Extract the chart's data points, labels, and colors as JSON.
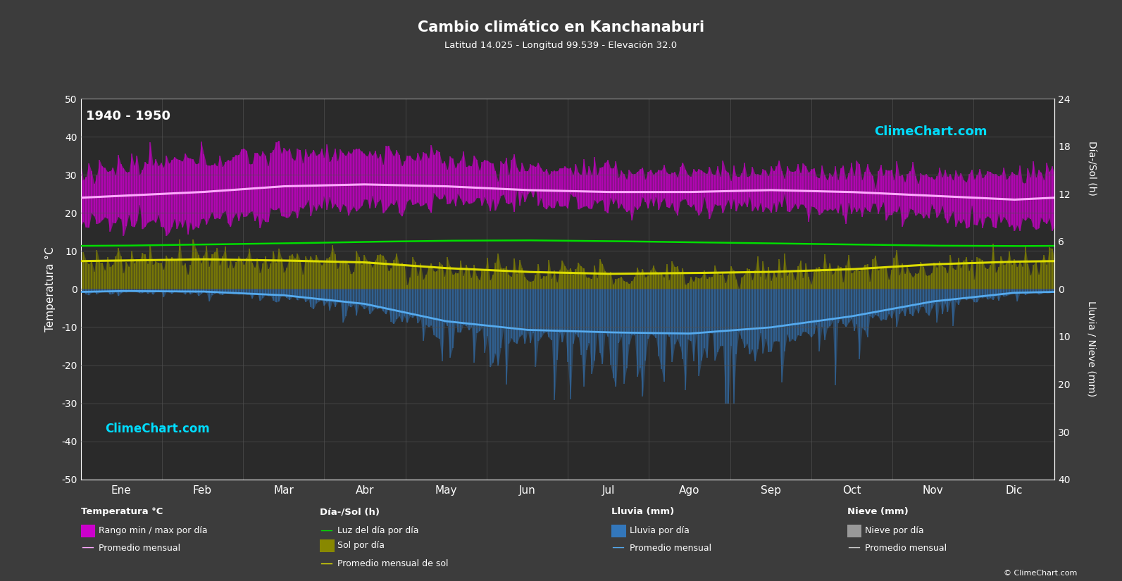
{
  "title": "Cambio climático en Kanchanaburi",
  "subtitle": "Latitud 14.025 - Longitud 99.539 - Elevación 32.0",
  "year_range": "1940 - 1950",
  "background_color": "#3c3c3c",
  "plot_bg_color": "#2a2a2a",
  "grid_color": "#505050",
  "text_color": "#ffffff",
  "months": [
    "Ene",
    "Feb",
    "Mar",
    "Abr",
    "May",
    "Jun",
    "Jul",
    "Ago",
    "Sep",
    "Oct",
    "Nov",
    "Dic"
  ],
  "ylim_temp": [
    -50,
    50
  ],
  "temp_min_monthly": [
    17,
    18,
    20,
    22,
    23,
    23,
    22,
    22,
    22,
    21,
    19,
    17
  ],
  "temp_max_monthly": [
    32,
    34,
    36,
    36,
    34,
    32,
    31,
    31,
    31,
    31,
    30,
    30
  ],
  "temp_avg_monthly": [
    24.5,
    25.5,
    27,
    27.5,
    27,
    26,
    25.5,
    25.5,
    26,
    25.5,
    24.5,
    23.5
  ],
  "temp_min_noise": 1.5,
  "temp_max_noise": 1.5,
  "daylight_monthly": [
    11.4,
    11.7,
    12.0,
    12.4,
    12.7,
    12.8,
    12.6,
    12.3,
    12.0,
    11.7,
    11.4,
    11.3
  ],
  "sunshine_monthly": [
    7.5,
    7.8,
    7.5,
    7.0,
    5.5,
    4.5,
    4.0,
    4.2,
    4.5,
    5.2,
    6.5,
    7.2
  ],
  "sunshine_noise": 2.0,
  "rain_mm_monthly": [
    8,
    10,
    25,
    60,
    130,
    165,
    175,
    180,
    155,
    110,
    50,
    15
  ],
  "rain_scale": 0.065,
  "rain_noise_factor": 1.8,
  "colors": {
    "temp_fill": "#cc00cc",
    "temp_avg_line": "#ffaaff",
    "daylight_line": "#00dd00",
    "sunshine_fill": "#888800",
    "sunshine_fill_top": "#cccc00",
    "sunshine_line": "#dddd00",
    "rain_fill": "#3377bb",
    "rain_line": "#55aaee",
    "snow_fill": "#999999",
    "snow_line": "#cccccc"
  },
  "logo_color": "#00ddff",
  "copyright_text": "© ClimeChart.com"
}
